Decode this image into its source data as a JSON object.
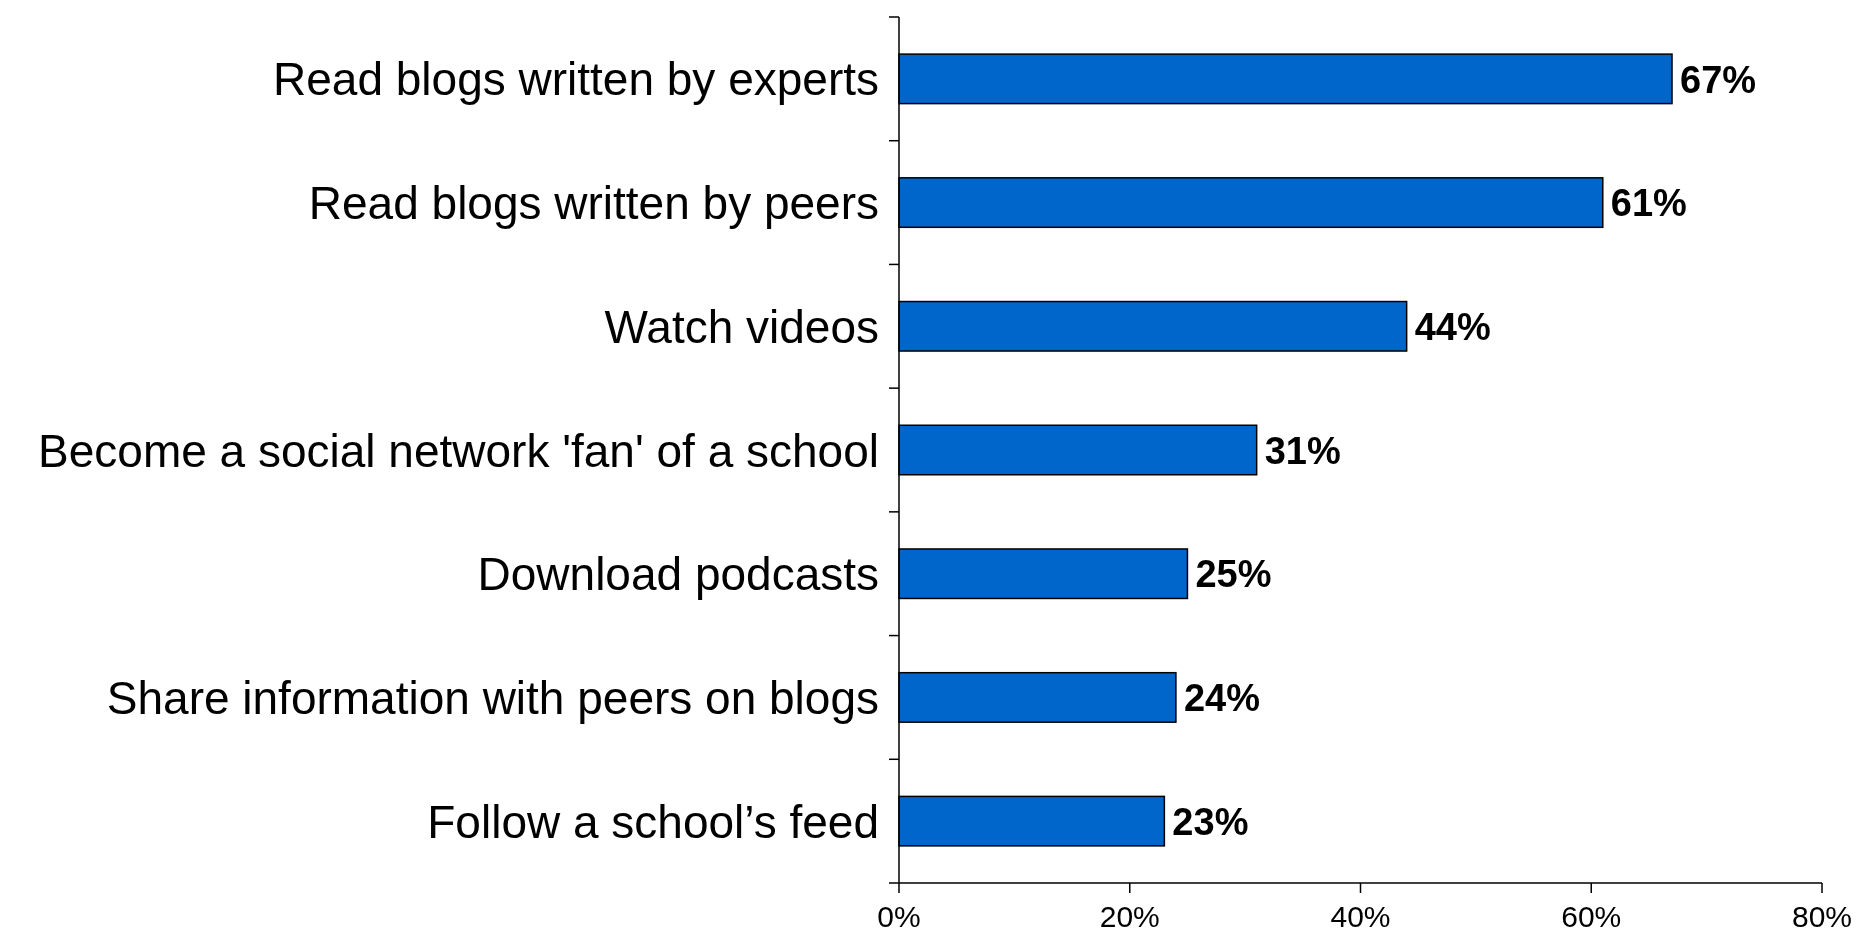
{
  "chart_data": {
    "type": "bar",
    "orientation": "horizontal",
    "categories": [
      "Read blogs written by experts",
      "Read blogs written by peers",
      "Watch videos",
      "Become a social network 'fan' of a school",
      "Download podcasts",
      "Share information with peers on blogs",
      "Follow a school’s feed"
    ],
    "values": [
      67,
      61,
      44,
      31,
      25,
      24,
      23
    ],
    "color": "#0066cc",
    "value_labels": [
      "67%",
      "61%",
      "44%",
      "31%",
      "25%",
      "24%",
      "23%"
    ],
    "xlim": [
      0,
      80
    ],
    "xticks": [
      {
        "value": 0,
        "label": "0%"
      },
      {
        "value": 20,
        "label": "20%"
      },
      {
        "value": 40,
        "label": "40%"
      },
      {
        "value": 60,
        "label": "60%"
      },
      {
        "value": 80,
        "label": "80%"
      }
    ],
    "tick_labels": "xy"
  }
}
